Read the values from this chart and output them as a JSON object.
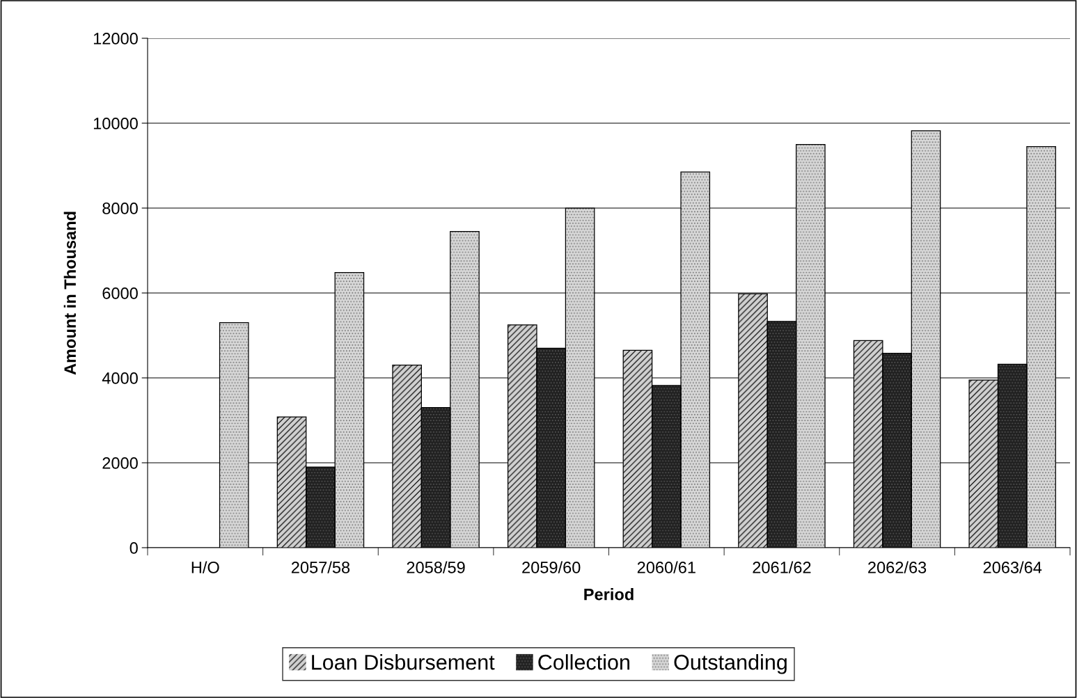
{
  "chart_data": {
    "type": "bar",
    "xlabel": "Period",
    "ylabel": "Amount in Thousand",
    "categories": [
      "H/O",
      "2057/58",
      "2058/59",
      "2059/60",
      "2060/61",
      "2061/62",
      "2062/63",
      "2063/64"
    ],
    "series": [
      {
        "name": "Loan Disbursement",
        "color": "#d0d0d0",
        "values": [
          null,
          3080,
          4300,
          5250,
          4650,
          5980,
          4880,
          3950
        ]
      },
      {
        "name": "Collection",
        "color": "#202020",
        "values": [
          null,
          1900,
          3300,
          4700,
          3820,
          5330,
          4580,
          4320
        ]
      },
      {
        "name": "Outstanding",
        "color": "#d8d8d8",
        "values": [
          5300,
          6480,
          7450,
          8000,
          8850,
          9500,
          9820,
          9450
        ]
      }
    ],
    "ylim": [
      0,
      12000
    ],
    "yticks": [
      0,
      2000,
      4000,
      6000,
      8000,
      10000,
      12000
    ],
    "grid": "y",
    "legend": "bottom"
  }
}
